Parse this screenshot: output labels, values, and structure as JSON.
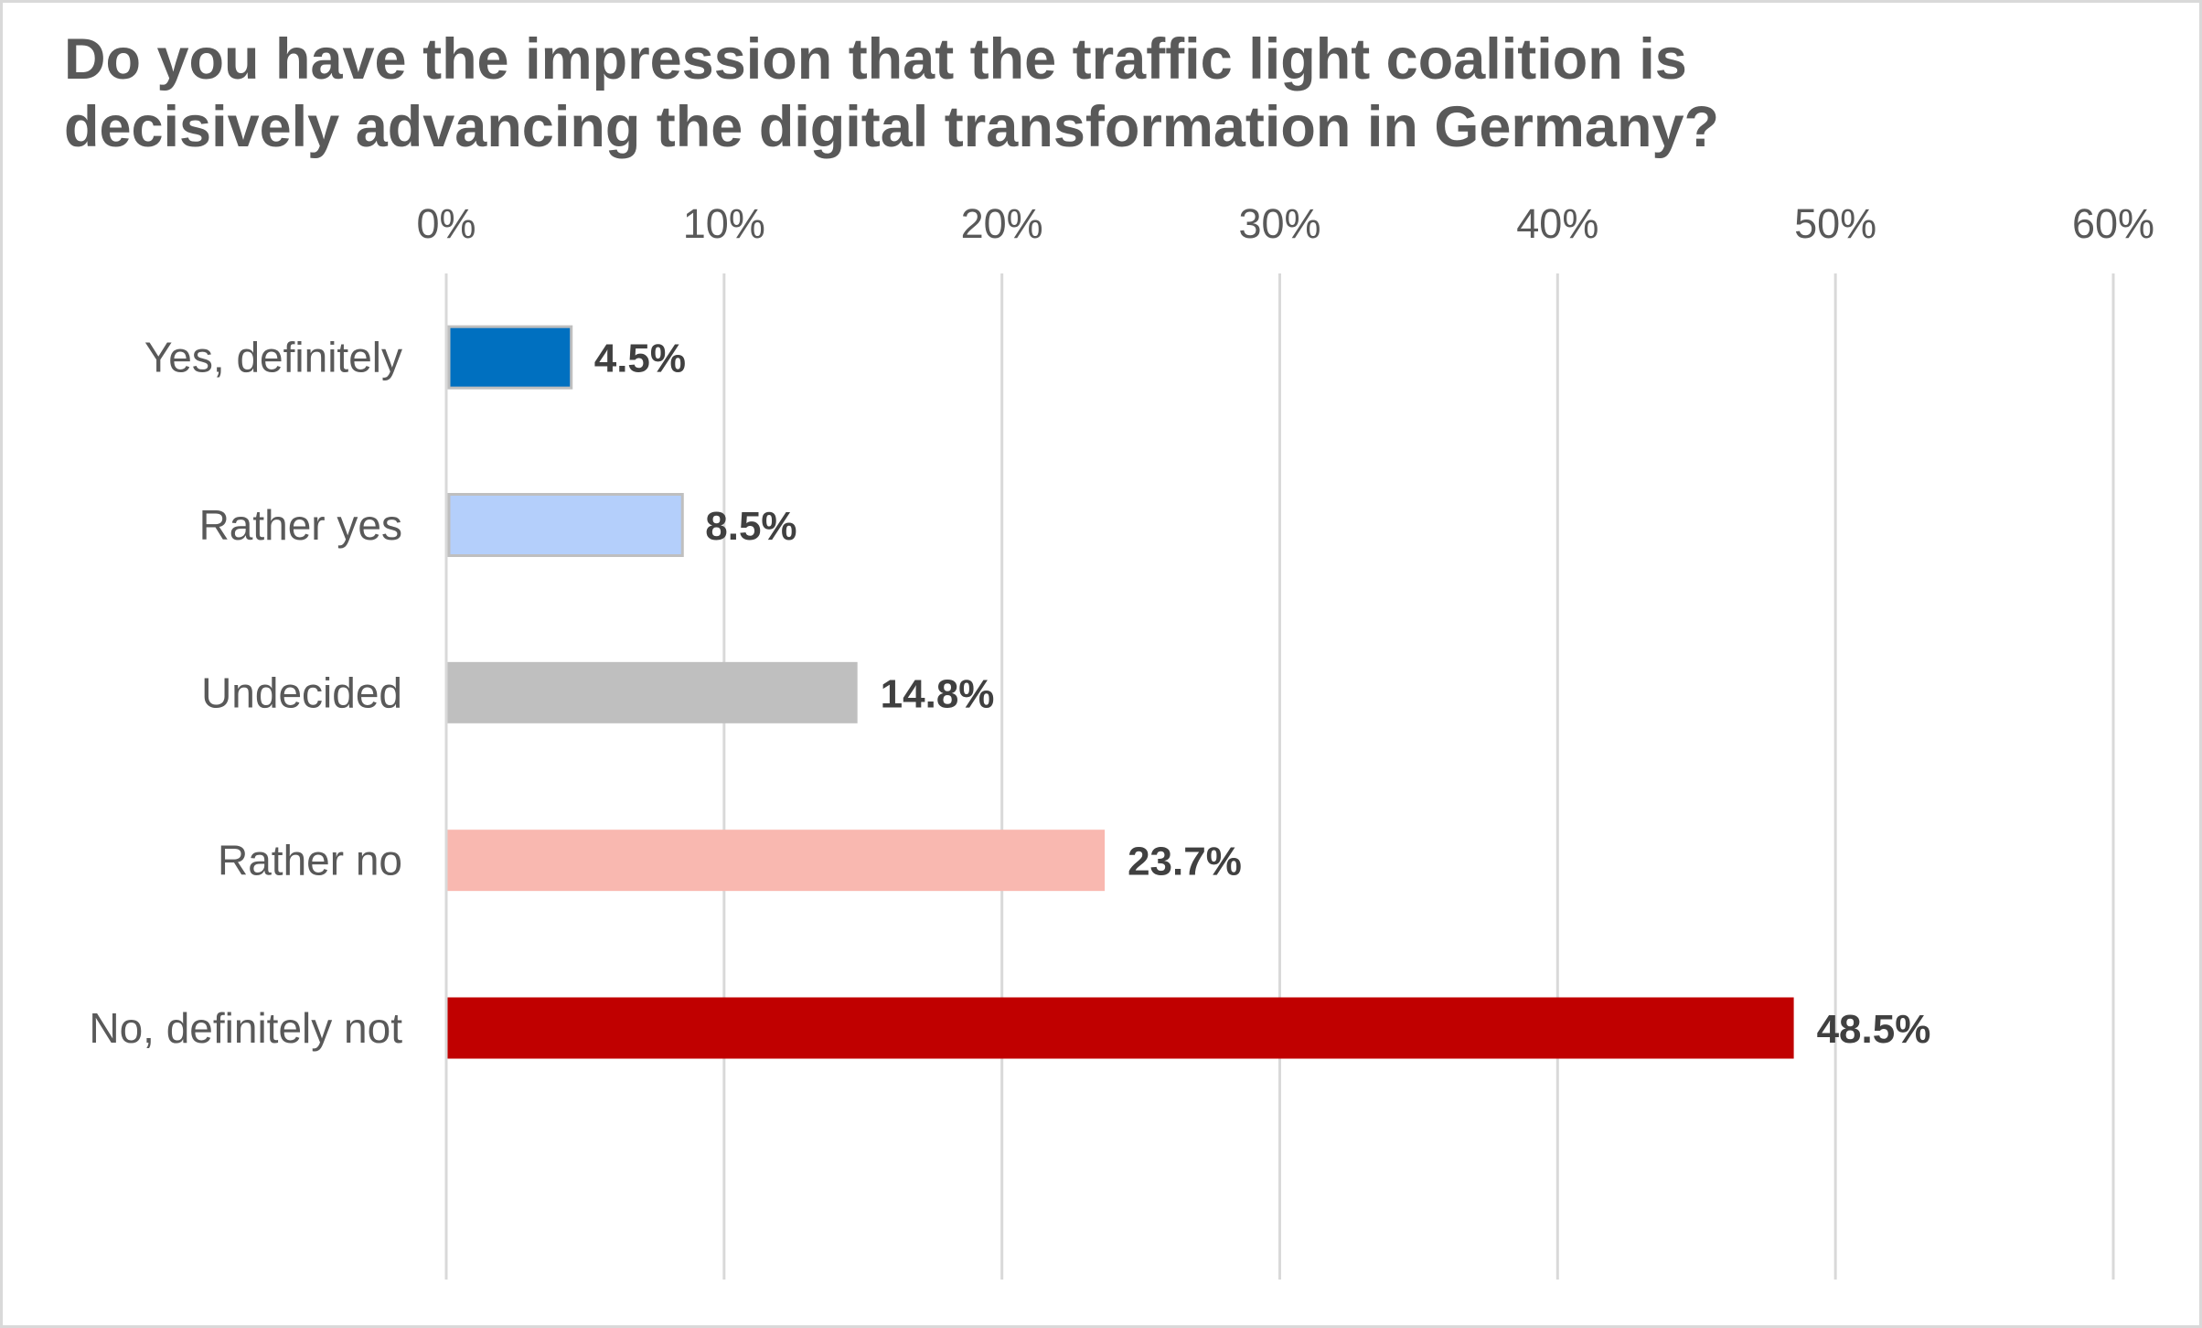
{
  "chart_data": {
    "type": "bar",
    "orientation": "horizontal",
    "title": "Do you have the impression that the traffic light coalition is decisively advancing the digital transformation in Germany?",
    "title_lines": [
      "Do you have the impression that the traffic light coalition is",
      "decisively advancing the digital transformation in Germany?"
    ],
    "xlabel": "",
    "ylabel": "",
    "xlim": [
      0,
      60
    ],
    "x_ticks": [
      0,
      10,
      20,
      30,
      40,
      50,
      60
    ],
    "x_tick_labels": [
      "0%",
      "10%",
      "20%",
      "30%",
      "40%",
      "50%",
      "60%"
    ],
    "x_axis_position": "top",
    "grid": true,
    "legend": "none",
    "categories": [
      "Yes, definitely",
      "Rather yes",
      "Undecided",
      "Rather no",
      "No, definitely not"
    ],
    "values": [
      4.5,
      8.5,
      14.8,
      23.7,
      48.5
    ],
    "data_labels": [
      "4.5%",
      "8.5%",
      "14.8%",
      "23.7%",
      "48.5%"
    ],
    "colors": [
      "#0070c0",
      "#b4cffb",
      "#bfbfbf",
      "#f9b8b0",
      "#c00000"
    ],
    "outlined": [
      true,
      true,
      false,
      false,
      false
    ],
    "outline_color": "#bfbfbf",
    "gridline_color": "#d9d9d9",
    "text_color": "#595959",
    "label_color": "#404040"
  }
}
